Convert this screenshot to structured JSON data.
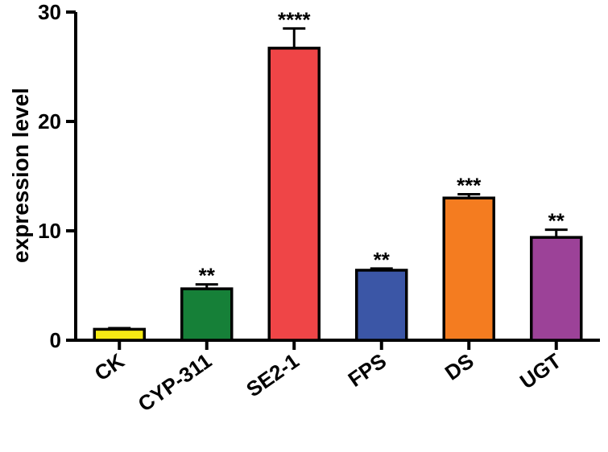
{
  "chart_data": {
    "type": "bar",
    "title": "",
    "xlabel": "",
    "ylabel": "expression level",
    "ylim": [
      0,
      30
    ],
    "yticks": [
      0,
      10,
      20,
      30
    ],
    "categories": [
      "CK",
      "CYP-311",
      "SE2-1",
      "FPS",
      "DS",
      "UGT"
    ],
    "values": [
      1.0,
      4.7,
      26.7,
      6.4,
      13.0,
      9.4
    ],
    "errors": [
      0.1,
      0.4,
      1.8,
      0.15,
      0.35,
      0.7
    ],
    "significance": [
      "",
      "**",
      "****",
      "**",
      "***",
      "**"
    ],
    "colors": [
      "#f5ea14",
      "#168038",
      "#ef4547",
      "#3b56a6",
      "#f47c20",
      "#9c4298"
    ],
    "grid": false,
    "legend": "none"
  }
}
